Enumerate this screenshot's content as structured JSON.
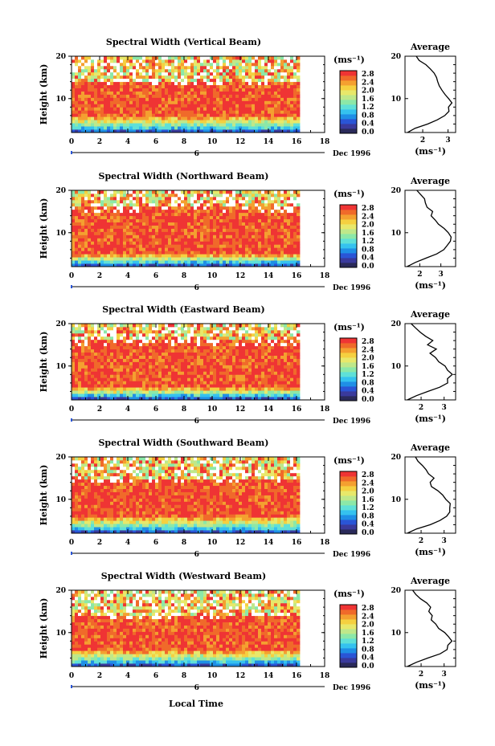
{
  "colors": {
    "palette": [
      "#2a2a5a",
      "#3a3a9c",
      "#2a55d6",
      "#1f8fe6",
      "#35c2ef",
      "#5fe0d8",
      "#8ce8a8",
      "#bfe88a",
      "#e8e86a",
      "#f5d040",
      "#f4a030",
      "#f06a2a",
      "#ef3434"
    ],
    "missing": "#ffffff"
  },
  "colorbar": {
    "unit": "(ms⁻¹)",
    "labels": [
      "2.8",
      "2.4",
      "2.0",
      "1.6",
      "1.2",
      "0.8",
      "0.4",
      "0.0"
    ],
    "range": [
      0,
      2.8
    ]
  },
  "time_axis": {
    "ticks": [
      "0",
      "2",
      "4",
      "6",
      "8",
      "10",
      "12",
      "14",
      "16",
      "18"
    ],
    "sublabel": "6",
    "date_label": "Dec 1996",
    "xlabel": "Local Time",
    "range": [
      0,
      18
    ]
  },
  "height_axis": {
    "label": "Height (km)",
    "ticks": [
      "20",
      "10"
    ],
    "range": [
      2,
      20
    ]
  },
  "chart_data": [
    {
      "type": "heatmap",
      "title": "Spectral Width (Vertical Beam)",
      "average_title": "Average",
      "average_xlabel": "(ms⁻¹)",
      "average_ticks": [
        "2",
        "3"
      ],
      "average_xlim": [
        1.3,
        3.3
      ],
      "average_profile": {
        "height": [
          2,
          3,
          4,
          5,
          6,
          7,
          8,
          9,
          10,
          11,
          12,
          13,
          14,
          15,
          16,
          17,
          18,
          19,
          20
        ],
        "value": [
          1.4,
          1.7,
          2.2,
          2.6,
          2.9,
          3.0,
          3.05,
          3.1,
          3.0,
          2.9,
          2.8,
          2.7,
          2.6,
          2.5,
          2.4,
          2.3,
          2.1,
          1.9,
          1.7
        ]
      },
      "heatmap_band": {
        "strong_from_km": 6,
        "strong_to_km": 14
      }
    },
    {
      "type": "heatmap",
      "title": "Spectral Width (Northward Beam)",
      "average_title": "Average",
      "average_xlabel": "(ms⁻¹)",
      "average_ticks": [
        "2",
        "3"
      ],
      "average_xlim": [
        1.3,
        3.7
      ],
      "average_profile": {
        "height": [
          2,
          3,
          4,
          5,
          6,
          7,
          8,
          9,
          10,
          11,
          12,
          13,
          14,
          15,
          16,
          17,
          18,
          19,
          20
        ],
        "value": [
          1.4,
          1.8,
          2.3,
          2.8,
          3.1,
          3.3,
          3.4,
          3.5,
          3.3,
          3.1,
          2.9,
          2.7,
          2.5,
          2.6,
          2.4,
          2.3,
          2.2,
          2.0,
          1.8
        ]
      },
      "heatmap_band": {
        "strong_from_km": 5,
        "strong_to_km": 16
      }
    },
    {
      "type": "heatmap",
      "title": "Spectral Width (Eastward Beam)",
      "average_title": "Average",
      "average_xlabel": "(ms⁻¹)",
      "average_ticks": [
        "2",
        "3"
      ],
      "average_xlim": [
        1.3,
        3.5
      ],
      "average_profile": {
        "height": [
          2,
          3,
          4,
          5,
          6,
          7,
          8,
          9,
          10,
          11,
          12,
          13,
          14,
          15,
          16,
          17,
          18,
          19,
          20
        ],
        "value": [
          1.4,
          1.8,
          2.3,
          2.8,
          3.1,
          3.2,
          3.3,
          3.2,
          3.0,
          2.8,
          2.6,
          2.4,
          2.7,
          2.3,
          2.5,
          2.2,
          2.0,
          1.8,
          1.6
        ]
      },
      "heatmap_band": {
        "strong_from_km": 5,
        "strong_to_km": 16
      }
    },
    {
      "type": "heatmap",
      "title": "Spectral Width (Southward Beam)",
      "average_title": "Average",
      "average_xlabel": "(ms⁻¹)",
      "average_ticks": [
        "2",
        "3"
      ],
      "average_xlim": [
        1.3,
        3.5
      ],
      "average_profile": {
        "height": [
          2,
          3,
          4,
          5,
          6,
          7,
          8,
          9,
          10,
          11,
          12,
          13,
          14,
          15,
          16,
          17,
          18,
          19,
          20
        ],
        "value": [
          1.4,
          1.8,
          2.4,
          2.8,
          3.1,
          3.2,
          3.3,
          3.3,
          3.1,
          2.9,
          2.7,
          2.5,
          2.4,
          2.6,
          2.3,
          2.2,
          2.0,
          1.9,
          1.7
        ]
      },
      "heatmap_band": {
        "strong_from_km": 6,
        "strong_to_km": 15
      }
    },
    {
      "type": "heatmap",
      "title": "Spectral Width (Westward Beam)",
      "average_title": "Average",
      "average_xlabel": "(ms⁻¹)",
      "average_ticks": [
        "2",
        "3"
      ],
      "average_xlim": [
        1.3,
        3.5
      ],
      "average_profile": {
        "height": [
          2,
          3,
          4,
          5,
          6,
          7,
          8,
          9,
          10,
          11,
          12,
          13,
          14,
          15,
          16,
          17,
          18,
          19,
          20
        ],
        "value": [
          1.4,
          1.8,
          2.3,
          2.8,
          3.1,
          3.2,
          3.3,
          3.2,
          3.0,
          2.8,
          2.6,
          2.4,
          2.5,
          2.3,
          2.4,
          2.2,
          2.0,
          1.8,
          1.6
        ]
      },
      "heatmap_band": {
        "strong_from_km": 6,
        "strong_to_km": 14
      }
    }
  ]
}
